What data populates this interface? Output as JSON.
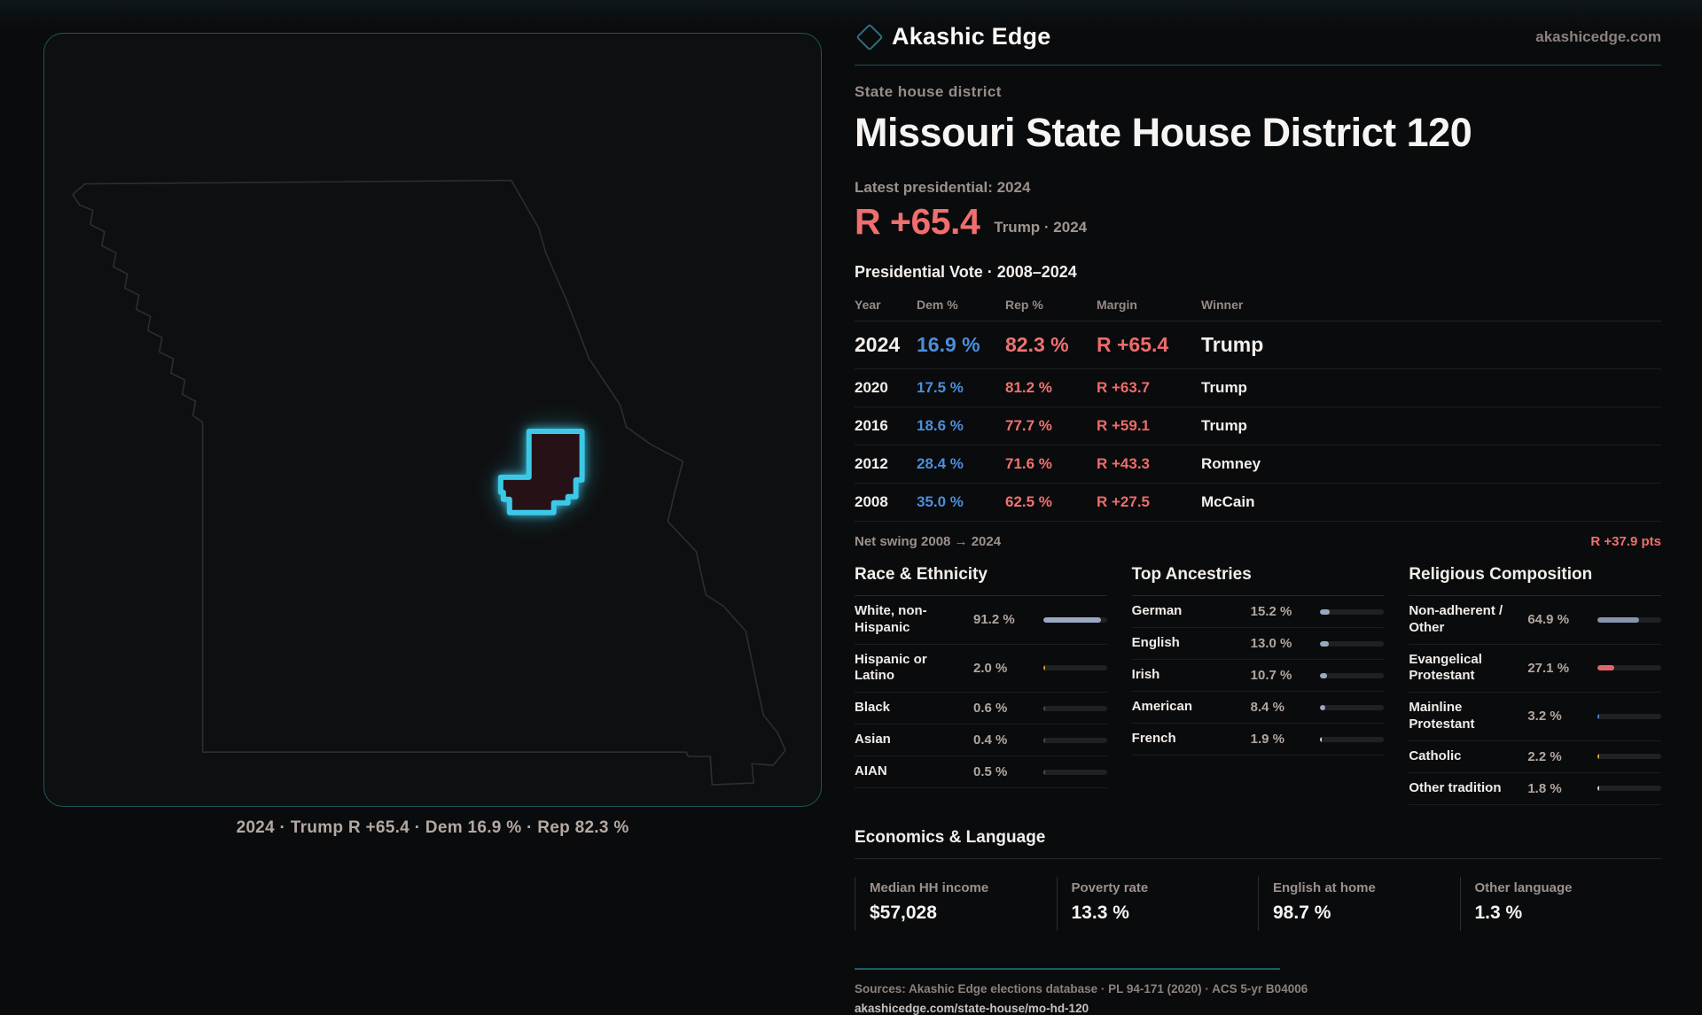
{
  "brand": {
    "name": "Akashic Edge",
    "domain": "akashicedge.com",
    "accent_teal": "#1d5560",
    "diamond_color": "#2a7080"
  },
  "map": {
    "caption": "2024 · Trump R +65.4 · Dem 16.9 % · Rep 82.3 %",
    "state_stroke": "#2b2e32",
    "district_stroke": "#3cc9e8",
    "district_fill": "#261216"
  },
  "header": {
    "kicker": "State house district",
    "title": "Missouri State House District 120",
    "latest_label": "Latest presidential: 2024",
    "headline_margin": "R +65.4",
    "headline_context": "Trump · 2024",
    "margin_color": "#ef6e6e"
  },
  "vote_table": {
    "title": "Presidential Vote · 2008–2024",
    "columns": [
      "Year",
      "Dem %",
      "Rep %",
      "Margin",
      "Winner"
    ],
    "rows": [
      {
        "year": "2024",
        "dem": "16.9 %",
        "rep": "82.3 %",
        "margin": "R +65.4",
        "winner": "Trump",
        "emphasis": true
      },
      {
        "year": "2020",
        "dem": "17.5 %",
        "rep": "81.2 %",
        "margin": "R +63.7",
        "winner": "Trump",
        "emphasis": false
      },
      {
        "year": "2016",
        "dem": "18.6 %",
        "rep": "77.7 %",
        "margin": "R +59.1",
        "winner": "Trump",
        "emphasis": false
      },
      {
        "year": "2012",
        "dem": "28.4 %",
        "rep": "71.6 %",
        "margin": "R +43.3",
        "winner": "Romney",
        "emphasis": false
      },
      {
        "year": "2008",
        "dem": "35.0 %",
        "rep": "62.5 %",
        "margin": "R +27.5",
        "winner": "McCain",
        "emphasis": false
      }
    ],
    "dem_color": "#4a8edd",
    "rep_color": "#ee7272"
  },
  "net_swing": {
    "label": "Net swing 2008 → 2024",
    "value": "R +37.9 pts"
  },
  "sections": [
    {
      "title": "Race & Ethnicity",
      "rows": [
        {
          "label": "White, non-Hispanic",
          "display": "91.2 %",
          "pct": 91.2,
          "color": "#9aa9c3"
        },
        {
          "label": "Hispanic or Latino",
          "display": "2.0 %",
          "pct": 2.0,
          "color": "#d99b30"
        },
        {
          "label": "Black",
          "display": "0.6 %",
          "pct": 0.6,
          "color": "#4a4e55"
        },
        {
          "label": "Asian",
          "display": "0.4 %",
          "pct": 0.4,
          "color": "#4a4e55"
        },
        {
          "label": "AIAN",
          "display": "0.5 %",
          "pct": 0.5,
          "color": "#4a4e55"
        }
      ]
    },
    {
      "title": "Top Ancestries",
      "rows": [
        {
          "label": "German",
          "display": "15.2 %",
          "pct": 15.2,
          "color": "#9aa9c3"
        },
        {
          "label": "English",
          "display": "13.0 %",
          "pct": 13.0,
          "color": "#9aa9c3"
        },
        {
          "label": "Irish",
          "display": "10.7 %",
          "pct": 10.7,
          "color": "#9aa9c3"
        },
        {
          "label": "American",
          "display": "8.4 %",
          "pct": 8.4,
          "color": "#9aa9c3"
        },
        {
          "label": "French",
          "display": "1.9 %",
          "pct": 1.9,
          "color": "#d8d4d0"
        }
      ]
    },
    {
      "title": "Religious Composition",
      "rows": [
        {
          "label": "Non-adherent / Other",
          "display": "64.9 %",
          "pct": 64.9,
          "color": "#8694ad"
        },
        {
          "label": "Evangelical Protestant",
          "display": "27.1 %",
          "pct": 27.1,
          "color": "#e5666a"
        },
        {
          "label": "Mainline Protestant",
          "display": "3.2 %",
          "pct": 3.2,
          "color": "#4a84d8"
        },
        {
          "label": "Catholic",
          "display": "2.2 %",
          "pct": 2.2,
          "color": "#dba43c"
        },
        {
          "label": "Other tradition",
          "display": "1.8 %",
          "pct": 1.8,
          "color": "#d8d4d0"
        }
      ]
    }
  ],
  "economics": {
    "title": "Economics & Language",
    "stats": [
      {
        "label": "Median HH income",
        "value": "$57,028"
      },
      {
        "label": "Poverty rate",
        "value": "13.3 %"
      },
      {
        "label": "English at home",
        "value": "98.7 %"
      },
      {
        "label": "Other language",
        "value": "1.3 %"
      }
    ]
  },
  "footer": {
    "sources": "Sources: Akashic Edge elections database · PL 94-171 (2020) · ACS 5-yr B04006",
    "permalink": "akashicedge.com/state-house/mo-hd-120"
  },
  "chart_data": [
    {
      "type": "table",
      "title": "Presidential Vote · 2008–2024",
      "columns": [
        "Year",
        "Dem %",
        "Rep %",
        "Margin",
        "Winner"
      ],
      "rows": [
        [
          2024,
          16.9,
          82.3,
          "R +65.4",
          "Trump"
        ],
        [
          2020,
          17.5,
          81.2,
          "R +63.7",
          "Trump"
        ],
        [
          2016,
          18.6,
          77.7,
          "R +59.1",
          "Trump"
        ],
        [
          2012,
          28.4,
          71.6,
          "R +43.3",
          "Romney"
        ],
        [
          2008,
          35.0,
          62.5,
          "R +27.5",
          "McCain"
        ]
      ],
      "annotations": [
        "Net swing 2008 → 2024: R +37.9 pts",
        "Latest presidential 2024: R +65.4 Trump"
      ]
    },
    {
      "type": "bar",
      "title": "Race & Ethnicity",
      "categories": [
        "White, non-Hispanic",
        "Hispanic or Latino",
        "Black",
        "Asian",
        "AIAN"
      ],
      "values": [
        91.2,
        2.0,
        0.6,
        0.4,
        0.5
      ],
      "unit": "%",
      "xlim": [
        0,
        100
      ],
      "orientation": "horizontal"
    },
    {
      "type": "bar",
      "title": "Top Ancestries",
      "categories": [
        "German",
        "English",
        "Irish",
        "American",
        "French"
      ],
      "values": [
        15.2,
        13.0,
        10.7,
        8.4,
        1.9
      ],
      "unit": "%",
      "xlim": [
        0,
        100
      ],
      "orientation": "horizontal"
    },
    {
      "type": "bar",
      "title": "Religious Composition",
      "categories": [
        "Non-adherent / Other",
        "Evangelical Protestant",
        "Mainline Protestant",
        "Catholic",
        "Other tradition"
      ],
      "values": [
        64.9,
        27.1,
        3.2,
        2.2,
        1.8
      ],
      "unit": "%",
      "xlim": [
        0,
        100
      ],
      "orientation": "horizontal"
    },
    {
      "type": "table",
      "title": "Economics & Language",
      "columns": [
        "Median HH income",
        "Poverty rate",
        "English at home",
        "Other language"
      ],
      "rows": [
        [
          "$57,028",
          "13.3 %",
          "98.7 %",
          "1.3 %"
        ]
      ]
    }
  ]
}
